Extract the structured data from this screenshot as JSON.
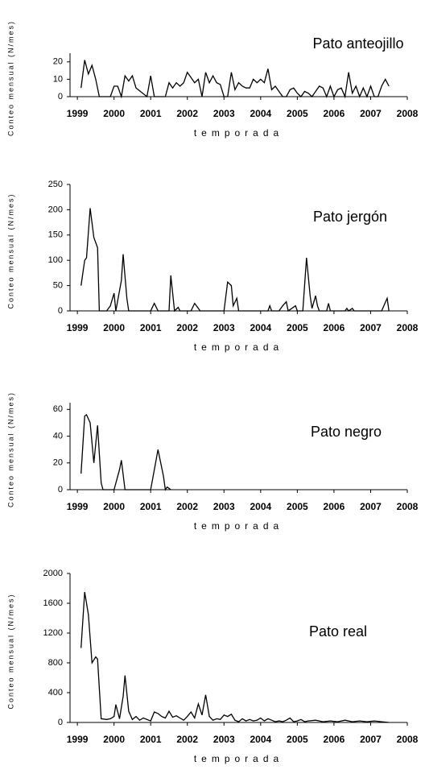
{
  "chart_data": [
    {
      "type": "line",
      "title": "Pato anteojillo",
      "ylabel": "Conteo mensual (N/mes)",
      "xlabel": "temporada",
      "color": "#000000",
      "x": [
        1999.1,
        1999.2,
        1999.3,
        1999.4,
        1999.5,
        1999.6,
        1999.8,
        1999.9,
        2000.0,
        2000.1,
        2000.2,
        2000.3,
        2000.4,
        2000.5,
        2000.6,
        2000.9,
        2001.0,
        2001.1,
        2001.4,
        2001.5,
        2001.6,
        2001.7,
        2001.8,
        2001.9,
        2002.0,
        2002.1,
        2002.2,
        2002.3,
        2002.4,
        2002.5,
        2002.6,
        2002.7,
        2002.8,
        2002.9,
        2003.0,
        2003.1,
        2003.2,
        2003.3,
        2003.4,
        2003.5,
        2003.6,
        2003.7,
        2003.8,
        2003.9,
        2004.0,
        2004.1,
        2004.2,
        2004.3,
        2004.4,
        2004.5,
        2004.6,
        2004.7,
        2004.8,
        2004.9,
        2005.0,
        2005.1,
        2005.2,
        2005.3,
        2005.4,
        2005.5,
        2005.6,
        2005.7,
        2005.8,
        2005.9,
        2006.0,
        2006.1,
        2006.2,
        2006.3,
        2006.4,
        2006.5,
        2006.6,
        2006.7,
        2006.8,
        2006.9,
        2007.0,
        2007.1,
        2007.2,
        2007.3,
        2007.4,
        2007.5
      ],
      "values": [
        5,
        21,
        13,
        18,
        10,
        0,
        0,
        0,
        6,
        6,
        0,
        12,
        9,
        12,
        5,
        0,
        12,
        0,
        0,
        8,
        5,
        8,
        6,
        8,
        14,
        11,
        8,
        10,
        0,
        14,
        8,
        12,
        8,
        7,
        0,
        0,
        14,
        4,
        8,
        6,
        5,
        5,
        10,
        8,
        10,
        8,
        16,
        4,
        6,
        3,
        0,
        0,
        4,
        5,
        2,
        0,
        3,
        2,
        0,
        3,
        6,
        5,
        0,
        6,
        0,
        4,
        5,
        0,
        14,
        2,
        6,
        0,
        5,
        0,
        6,
        0,
        0,
        6,
        10,
        6
      ],
      "xlim": [
        1998.8,
        2008
      ],
      "xticks": [
        1999,
        2000,
        2001,
        2002,
        2003,
        2004,
        2005,
        2006,
        2007,
        2008
      ],
      "ylim": [
        0,
        25
      ],
      "yticks": [
        0,
        10,
        20
      ]
    },
    {
      "type": "line",
      "title": "Pato jergón",
      "ylabel": "Conteo mensual (N/mes)",
      "xlabel": "temporada",
      "color": "#000000",
      "x": [
        1999.1,
        1999.2,
        1999.25,
        1999.35,
        1999.45,
        1999.55,
        1999.6,
        1999.8,
        1999.9,
        2000.0,
        2000.05,
        2000.2,
        2000.25,
        2000.35,
        2000.4,
        2001.0,
        2001.1,
        2001.2,
        2001.5,
        2001.55,
        2001.65,
        2001.75,
        2001.8,
        2002.1,
        2002.2,
        2002.35,
        2003.0,
        2003.1,
        2003.2,
        2003.25,
        2003.35,
        2003.4,
        2004.2,
        2004.25,
        2004.3,
        2004.5,
        2004.6,
        2004.7,
        2004.75,
        2004.95,
        2005.0,
        2005.15,
        2005.25,
        2005.35,
        2005.4,
        2005.5,
        2005.55,
        2005.6,
        2005.8,
        2005.85,
        2005.9,
        2006.3,
        2006.35,
        2006.4,
        2006.5,
        2006.55,
        2007.3,
        2007.45,
        2007.5
      ],
      "values": [
        50,
        100,
        105,
        203,
        145,
        125,
        0,
        0,
        10,
        35,
        0,
        60,
        112,
        25,
        0,
        0,
        15,
        0,
        0,
        70,
        0,
        7,
        0,
        0,
        15,
        0,
        0,
        57,
        50,
        10,
        25,
        0,
        0,
        10,
        0,
        0,
        10,
        18,
        0,
        10,
        0,
        0,
        105,
        30,
        5,
        30,
        10,
        0,
        0,
        15,
        0,
        0,
        5,
        0,
        5,
        0,
        0,
        25,
        0
      ],
      "xlim": [
        1998.8,
        2008
      ],
      "xticks": [
        1999,
        2000,
        2001,
        2002,
        2003,
        2004,
        2005,
        2006,
        2007,
        2008
      ],
      "ylim": [
        0,
        250
      ],
      "yticks": [
        0,
        50,
        100,
        150,
        200,
        250
      ]
    },
    {
      "type": "line",
      "title": "Pato negro",
      "ylabel": "Conteo mensual (N/mes)",
      "xlabel": "temporada",
      "color": "#000000",
      "x": [
        1999.1,
        1999.2,
        1999.25,
        1999.35,
        1999.45,
        1999.55,
        1999.65,
        1999.7,
        1999.8,
        2000.0,
        2000.15,
        2000.2,
        2000.3,
        2001.0,
        2001.2,
        2001.35,
        2001.4,
        2001.45,
        2001.55
      ],
      "values": [
        12,
        55,
        56,
        50,
        20,
        48,
        5,
        0,
        0,
        0,
        15,
        22,
        0,
        0,
        30,
        10,
        0,
        2,
        0
      ],
      "xlim": [
        1998.8,
        2008
      ],
      "xticks": [
        1999,
        2000,
        2001,
        2002,
        2003,
        2004,
        2005,
        2006,
        2007,
        2008
      ],
      "ylim": [
        0,
        65
      ],
      "yticks": [
        0,
        20,
        40,
        60
      ]
    },
    {
      "type": "line",
      "title": "Pato real",
      "ylabel": "Conteo mensual (N/mes)",
      "xlabel": "temporada",
      "color": "#000000",
      "x": [
        1999.1,
        1999.2,
        1999.3,
        1999.4,
        1999.5,
        1999.55,
        1999.65,
        1999.8,
        1999.9,
        2000.0,
        2000.05,
        2000.15,
        2000.25,
        2000.3,
        2000.4,
        2000.5,
        2000.6,
        2000.7,
        2000.8,
        2000.9,
        2001.0,
        2001.1,
        2001.2,
        2001.3,
        2001.4,
        2001.5,
        2001.6,
        2001.7,
        2001.8,
        2001.9,
        2002.0,
        2002.1,
        2002.2,
        2002.3,
        2002.4,
        2002.5,
        2002.6,
        2002.7,
        2002.8,
        2002.9,
        2003.0,
        2003.1,
        2003.2,
        2003.3,
        2003.4,
        2003.5,
        2003.6,
        2003.7,
        2003.8,
        2003.9,
        2004.0,
        2004.1,
        2004.2,
        2004.3,
        2004.4,
        2004.5,
        2004.6,
        2004.7,
        2004.8,
        2004.9,
        2005.0,
        2005.1,
        2005.2,
        2005.3,
        2005.5,
        2005.7,
        2005.9,
        2006.1,
        2006.3,
        2006.5,
        2006.7,
        2006.9,
        2007.1,
        2007.3,
        2007.5
      ],
      "values": [
        1000,
        1750,
        1450,
        800,
        880,
        850,
        50,
        40,
        50,
        80,
        240,
        50,
        350,
        630,
        150,
        40,
        80,
        30,
        60,
        40,
        20,
        140,
        120,
        80,
        60,
        150,
        70,
        90,
        60,
        30,
        80,
        140,
        60,
        250,
        100,
        370,
        80,
        30,
        50,
        40,
        100,
        80,
        110,
        30,
        10,
        50,
        20,
        40,
        20,
        30,
        60,
        20,
        50,
        30,
        10,
        20,
        10,
        30,
        60,
        10,
        20,
        40,
        10,
        20,
        30,
        10,
        20,
        10,
        30,
        10,
        20,
        10,
        20,
        10,
        0
      ],
      "xlim": [
        1998.8,
        2008
      ],
      "xticks": [
        1999,
        2000,
        2001,
        2002,
        2003,
        2004,
        2005,
        2006,
        2007,
        2008
      ],
      "ylim": [
        0,
        2000
      ],
      "yticks": [
        0,
        400,
        800,
        1200,
        1600,
        2000
      ]
    }
  ]
}
